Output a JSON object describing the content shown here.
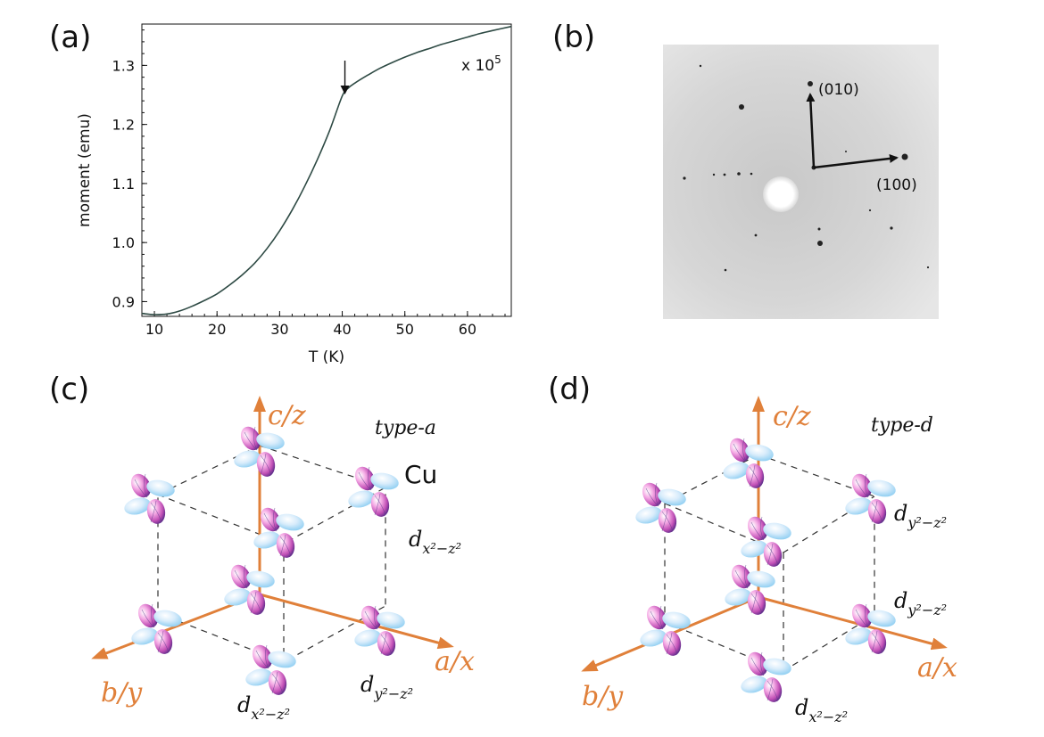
{
  "panels": {
    "a": "(a)",
    "b": "(b)",
    "c": "(c)",
    "d": "(d)"
  },
  "chart_data": {
    "type": "line",
    "xlabel": "T (K)",
    "ylabel": "moment (emu)",
    "scale_note": "x 10",
    "scale_exp": "5",
    "xlim": [
      8,
      67
    ],
    "ylim": [
      0.875,
      1.37
    ],
    "xticks": [
      "10",
      "20",
      "30",
      "40",
      "50",
      "60"
    ],
    "yticks": [
      "0.9",
      "1.0",
      "1.1",
      "1.2",
      "1.3"
    ],
    "series": [
      {
        "color": "#2e4a44",
        "x": [
          8,
          10,
          12,
          14,
          16,
          18,
          20,
          22,
          24,
          26,
          28,
          30,
          32,
          34,
          36,
          38,
          40,
          41,
          42,
          44,
          46,
          48,
          50,
          52,
          54,
          56,
          58,
          60,
          62,
          64,
          67
        ],
        "y": [
          0.88,
          0.878,
          0.879,
          0.884,
          0.892,
          0.902,
          0.913,
          0.928,
          0.945,
          0.965,
          0.99,
          1.02,
          1.055,
          1.095,
          1.14,
          1.19,
          1.248,
          1.262,
          1.27,
          1.283,
          1.295,
          1.305,
          1.314,
          1.322,
          1.329,
          1.336,
          1.342,
          1.348,
          1.354,
          1.359,
          1.366
        ]
      }
    ],
    "annotations": [
      {
        "x": 40,
        "marker": "down-arrow"
      }
    ]
  },
  "diffraction": {
    "label_010": "(010)",
    "label_100": "(100)"
  },
  "lattice_c": {
    "type_label": "type-a",
    "atom_label": "Cu",
    "axis_c": "c/z",
    "axis_a": "a/x",
    "axis_b": "b/y",
    "orbitals": [
      {
        "base": "d",
        "sub": "x²−z²"
      },
      {
        "base": "d",
        "sub": "x²−z²"
      },
      {
        "base": "d",
        "sub": "y²−z²"
      }
    ]
  },
  "lattice_d": {
    "type_label": "type-d",
    "axis_c": "c/z",
    "axis_a": "a/x",
    "axis_b": "b/y",
    "orbitals": [
      {
        "base": "d",
        "sub": "y²−z²"
      },
      {
        "base": "d",
        "sub": "y²−z²"
      },
      {
        "base": "d",
        "sub": "x²−z²"
      }
    ]
  },
  "colors": {
    "axis_arrow": "#e0803a",
    "orbital_pink": "#e97ad0",
    "orbital_blue": "#8fd4f5",
    "orbital_purple": "#4a2c8a"
  }
}
